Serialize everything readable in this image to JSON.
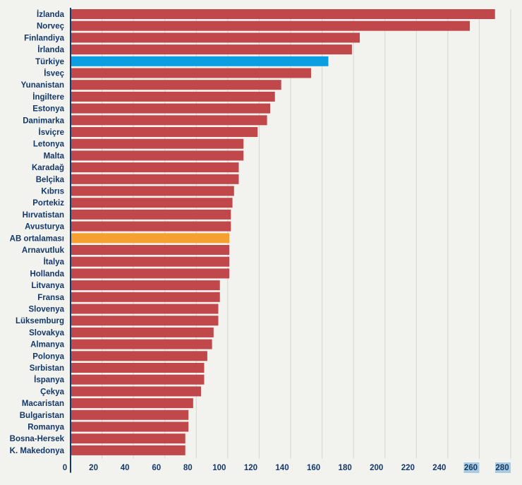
{
  "chart_data": {
    "type": "bar",
    "orientation": "horizontal",
    "categories": [
      "İzlanda",
      "Norveç",
      "Finlandiya",
      "İrlanda",
      "Türkiye",
      "İsveç",
      "Yunanistan",
      "İngiltere",
      "Estonya",
      "Danimarka",
      "İsviçre",
      "Letonya",
      "Malta",
      "Karadağ",
      "Belçika",
      "Kıbrıs",
      "Portekiz",
      "Hırvatistan",
      "Avusturya",
      "AB ortalaması",
      "Arnavutluk",
      "İtalya",
      "Hollanda",
      "Litvanya",
      "Fransa",
      "Slovenya",
      "Lüksemburg",
      "Slovakya",
      "Almanya",
      "Polonya",
      "Sırbistan",
      "İspanya",
      "Çekya",
      "Macaristan",
      "Bulgaristan",
      "Romanya",
      "Bosna-Hersek",
      "K. Makedonya"
    ],
    "values": [
      270,
      254,
      184,
      179,
      164,
      153,
      134,
      130,
      127,
      125,
      119,
      110,
      110,
      107,
      107,
      104,
      103,
      102,
      102,
      101,
      101,
      101,
      101,
      95,
      95,
      94,
      94,
      91,
      90,
      87,
      85,
      85,
      83,
      78,
      75,
      75,
      73,
      73
    ],
    "highlight": {
      "Türkiye": "#0b9ee0",
      "AB ortalaması": "#f5a030"
    },
    "bar_color": "#c0484a",
    "xlim": [
      0,
      280
    ],
    "xticks": [
      0,
      20,
      40,
      60,
      80,
      100,
      120,
      140,
      160,
      180,
      200,
      220,
      240,
      260,
      280
    ],
    "highlighted_ticks": [
      260,
      280
    ],
    "tick_color": "#13386b",
    "tick_highlight_bg": "#a9cbe0",
    "grid": "vertical",
    "title": "",
    "xlabel": "",
    "ylabel": ""
  }
}
